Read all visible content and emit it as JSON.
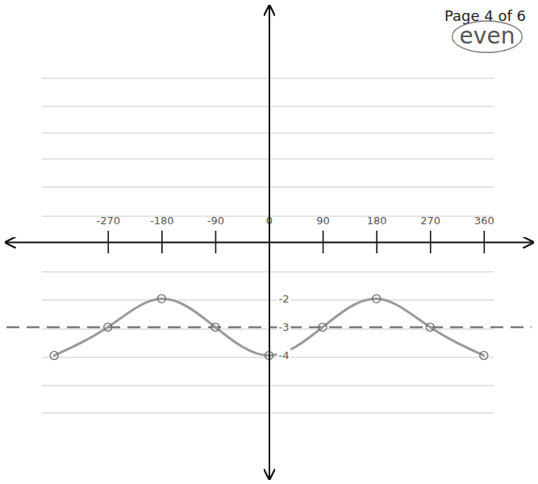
{
  "chart_data": {
    "type": "line",
    "annotations": [
      "Page 4 of 6",
      "even"
    ],
    "x": [
      -360,
      -270,
      -180,
      -90,
      0,
      90,
      180,
      270,
      360
    ],
    "values": [
      -4,
      -3,
      -2,
      -3,
      -4,
      -3,
      -2,
      -3,
      -4
    ],
    "xlim": [
      -440,
      440
    ],
    "ylim": [
      -8.3,
      8.3
    ],
    "xticks": [
      -270,
      -180,
      -90,
      0,
      90,
      180,
      270,
      360
    ],
    "yticks": [
      -4,
      -3,
      -2
    ],
    "midline": -3,
    "color": "#9a9a9a",
    "marker": "circle",
    "line_style": "solid"
  }
}
